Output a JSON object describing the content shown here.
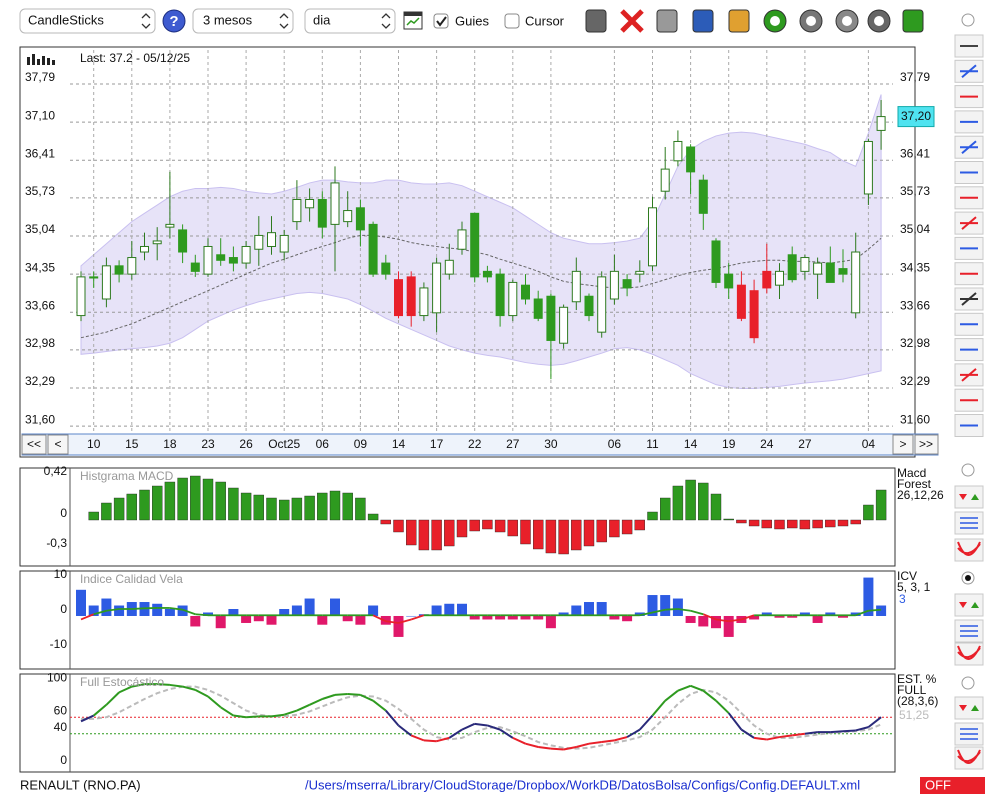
{
  "toolbar": {
    "chart_type": "CandleSticks",
    "period": "3 mesos",
    "interval": "dia",
    "guides": {
      "label": "Guies",
      "checked": true
    },
    "cursor": {
      "label": "Cursor",
      "checked": false
    }
  },
  "chart_data": [
    {
      "type": "candlestick",
      "annotation": "Last: 37.2 - 05/12/25",
      "categories": [
        null,
        "10",
        null,
        null,
        "15",
        null,
        null,
        "18",
        null,
        null,
        "23",
        null,
        null,
        "26",
        null,
        null,
        "Oct25",
        null,
        null,
        "06",
        null,
        null,
        "09",
        null,
        null,
        "14",
        null,
        null,
        "17",
        null,
        null,
        "22",
        null,
        null,
        "27",
        null,
        null,
        "30",
        null,
        null,
        null,
        null,
        "06",
        null,
        null,
        "11",
        null,
        null,
        "14",
        null,
        null,
        "19",
        null,
        null,
        "24",
        null,
        null,
        "27",
        null,
        null,
        null,
        null,
        "04",
        null
      ],
      "open": [
        33.6,
        34.3,
        33.9,
        34.5,
        34.35,
        34.75,
        34.9,
        35.2,
        35.15,
        34.55,
        34.35,
        34.7,
        34.65,
        34.55,
        34.8,
        34.85,
        34.75,
        35.3,
        35.55,
        35.7,
        35.25,
        35.3,
        35.55,
        35.25,
        34.55,
        34.25,
        34.3,
        33.6,
        33.65,
        34.35,
        34.8,
        35.45,
        34.4,
        34.35,
        33.6,
        34.15,
        33.9,
        33.95,
        33.1,
        33.85,
        33.95,
        33.3,
        33.9,
        34.25,
        34.35,
        34.5,
        35.85,
        36.4,
        36.65,
        36.05,
        34.95,
        34.35,
        34.15,
        33.2,
        34.4,
        34.15,
        34.7,
        34.4,
        34.35,
        34.55,
        34.45,
        33.65,
        35.8,
        36.95
      ],
      "high": [
        34.4,
        34.4,
        34.65,
        34.6,
        34.95,
        35.1,
        35.2,
        36.2,
        35.25,
        34.7,
        35.0,
        35.0,
        34.85,
        34.95,
        35.4,
        35.4,
        35.15,
        36.05,
        35.9,
        35.85,
        36.3,
        35.85,
        35.7,
        35.3,
        34.7,
        34.4,
        34.4,
        34.2,
        34.65,
        34.9,
        35.3,
        35.45,
        34.5,
        34.45,
        34.25,
        34.35,
        34.05,
        34.0,
        33.8,
        34.65,
        34.0,
        34.4,
        34.7,
        34.35,
        34.6,
        35.75,
        36.65,
        36.95,
        36.7,
        36.15,
        35.0,
        34.55,
        34.4,
        34.25,
        34.9,
        34.55,
        34.85,
        34.7,
        34.65,
        34.85,
        34.8,
        35.1,
        36.8,
        37.5
      ],
      "low": [
        33.5,
        34.1,
        33.75,
        34.2,
        34.25,
        34.6,
        34.6,
        35.0,
        34.55,
        34.3,
        34.3,
        34.5,
        34.4,
        34.45,
        34.5,
        34.7,
        34.6,
        35.15,
        35.3,
        35.0,
        34.4,
        35.2,
        34.85,
        34.3,
        34.25,
        33.55,
        33.4,
        33.5,
        33.3,
        34.25,
        34.7,
        34.2,
        34.2,
        33.4,
        33.5,
        33.8,
        33.5,
        32.45,
        33.0,
        33.7,
        33.5,
        33.2,
        33.8,
        33.95,
        34.2,
        34.4,
        35.7,
        36.3,
        35.8,
        35.15,
        34.1,
        33.9,
        33.5,
        33.1,
        34.0,
        33.9,
        34.2,
        34.25,
        33.9,
        34.2,
        34.2,
        33.55,
        35.6,
        36.6
      ],
      "close": [
        34.3,
        34.28,
        34.5,
        34.35,
        34.65,
        34.85,
        34.95,
        35.25,
        34.75,
        34.4,
        34.85,
        34.6,
        34.55,
        34.85,
        35.05,
        35.1,
        35.05,
        35.7,
        35.7,
        35.2,
        36.0,
        35.5,
        35.15,
        34.35,
        34.35,
        33.6,
        33.6,
        34.1,
        34.55,
        34.6,
        35.15,
        34.3,
        34.3,
        33.6,
        34.2,
        33.9,
        33.55,
        33.15,
        33.75,
        34.4,
        33.6,
        34.3,
        34.4,
        34.1,
        34.4,
        35.55,
        36.25,
        36.75,
        36.2,
        35.45,
        34.2,
        34.1,
        33.55,
        34.05,
        34.1,
        34.4,
        34.25,
        34.65,
        34.55,
        34.2,
        34.35,
        34.75,
        36.75,
        37.2
      ],
      "colors": [
        "#ffffff",
        "#2e9a1f",
        "#ffffff",
        "#2e9a1f",
        "#ffffff",
        "#ffffff",
        "#ffffff",
        "#ffffff",
        "#2e9a1f",
        "#2e9a1f",
        "#ffffff",
        "#2e9a1f",
        "#2e9a1f",
        "#ffffff",
        "#ffffff",
        "#ffffff",
        "#ffffff",
        "#ffffff",
        "#ffffff",
        "#2e9a1f",
        "#ffffff",
        "#ffffff",
        "#2e9a1f",
        "#2e9a1f",
        "#2e9a1f",
        "#e8202a",
        "#e8202a",
        "#ffffff",
        "#ffffff",
        "#ffffff",
        "#ffffff",
        "#2e9a1f",
        "#2e9a1f",
        "#2e9a1f",
        "#ffffff",
        "#2e9a1f",
        "#2e9a1f",
        "#2e9a1f",
        "#ffffff",
        "#ffffff",
        "#2e9a1f",
        "#ffffff",
        "#ffffff",
        "#2e9a1f",
        "#ffffff",
        "#ffffff",
        "#ffffff",
        "#ffffff",
        "#2e9a1f",
        "#2e9a1f",
        "#2e9a1f",
        "#2e9a1f",
        "#e8202a",
        "#e8202a",
        "#e8202a",
        "#ffffff",
        "#2e9a1f",
        "#ffffff",
        "#ffffff",
        "#2e9a1f",
        "#2e9a1f",
        "#ffffff",
        "#ffffff",
        "#ffffff"
      ],
      "ma": [
        33.2,
        33.25,
        33.3,
        33.38,
        33.45,
        33.55,
        33.65,
        33.75,
        33.85,
        33.95,
        34.05,
        34.15,
        34.25,
        34.35,
        34.45,
        34.55,
        34.62,
        34.7,
        34.78,
        34.85,
        34.92,
        35.0,
        35.05,
        35.05,
        35.02,
        34.98,
        34.92,
        34.88,
        34.85,
        34.82,
        34.8,
        34.75,
        34.7,
        34.62,
        34.55,
        34.48,
        34.4,
        34.3,
        34.22,
        34.18,
        34.15,
        34.12,
        34.1,
        34.1,
        34.12,
        34.18,
        34.25,
        34.32,
        34.38,
        34.42,
        34.45,
        34.5,
        34.55,
        34.58,
        34.6,
        34.6,
        34.58,
        34.58,
        34.57,
        34.55,
        34.58,
        34.62,
        34.8,
        35.0
      ],
      "band_upper": [
        34.5,
        34.7,
        34.9,
        35.1,
        35.3,
        35.45,
        35.6,
        35.75,
        35.85,
        35.9,
        35.9,
        35.92,
        35.9,
        35.85,
        35.82,
        35.8,
        35.85,
        35.92,
        36.0,
        36.05,
        36.05,
        36.02,
        36.0,
        36.0,
        36.05,
        36.05,
        36.0,
        35.98,
        35.98,
        36.0,
        35.95,
        35.85,
        35.75,
        35.65,
        35.55,
        35.4,
        35.25,
        35.1,
        35.0,
        34.95,
        34.9,
        34.9,
        34.92,
        34.95,
        35.0,
        35.3,
        35.8,
        36.3,
        36.6,
        36.75,
        36.85,
        36.9,
        36.92,
        36.9,
        36.85,
        36.8,
        36.75,
        36.7,
        36.62,
        36.55,
        36.4,
        36.3,
        36.9,
        37.6
      ],
      "band_lower": [
        32.9,
        32.92,
        32.95,
        32.98,
        33.0,
        33.02,
        33.05,
        33.1,
        33.2,
        33.35,
        33.5,
        33.6,
        33.7,
        33.78,
        33.85,
        33.9,
        33.95,
        34.0,
        34.02,
        34.0,
        33.95,
        33.9,
        33.8,
        33.68,
        33.55,
        33.45,
        33.35,
        33.25,
        33.15,
        33.05,
        32.98,
        32.92,
        32.88,
        32.85,
        32.8,
        32.75,
        32.72,
        32.7,
        32.72,
        32.78,
        32.85,
        32.92,
        33.0,
        33.02,
        32.98,
        32.9,
        32.8,
        32.7,
        32.55,
        32.45,
        32.35,
        32.3,
        32.28,
        32.28,
        32.3,
        32.32,
        32.35,
        32.38,
        32.4,
        32.42,
        32.45,
        32.5,
        32.55,
        32.6
      ],
      "band_color": "#c9c0f0",
      "last_price": {
        "value": 37.2,
        "label": "37,20"
      },
      "ylim": [
        31.53,
        38.26
      ],
      "yticks": [
        {
          "value": 31.6,
          "label": "31,60"
        },
        {
          "value": 32.29,
          "label": "32,29"
        },
        {
          "value": 32.98,
          "label": "32,98"
        },
        {
          "value": 33.66,
          "label": "33,66"
        },
        {
          "value": 34.35,
          "label": "34,35"
        },
        {
          "value": 35.04,
          "label": "35,04"
        },
        {
          "value": 35.73,
          "label": "35,73"
        },
        {
          "value": 36.41,
          "label": "36,41"
        },
        {
          "value": 37.1,
          "label": "37,10"
        },
        {
          "value": 37.79,
          "label": "37,79"
        }
      ],
      "grid": true
    },
    {
      "type": "bar",
      "title": "Histgrama MACD",
      "legend": [
        "Macd",
        "Forest",
        "26,12,26"
      ],
      "values": [
        null,
        0.08,
        0.17,
        0.22,
        0.26,
        0.3,
        0.34,
        0.38,
        0.42,
        0.44,
        0.41,
        0.38,
        0.32,
        0.27,
        0.25,
        0.22,
        0.2,
        0.22,
        0.24,
        0.27,
        0.29,
        0.27,
        0.22,
        0.06,
        -0.04,
        -0.12,
        -0.25,
        -0.3,
        -0.3,
        -0.26,
        -0.17,
        -0.11,
        -0.09,
        -0.12,
        -0.16,
        -0.24,
        -0.29,
        -0.33,
        -0.34,
        -0.3,
        -0.26,
        -0.22,
        -0.17,
        -0.14,
        -0.1,
        0.08,
        0.22,
        0.34,
        0.4,
        0.37,
        0.26,
        0.01,
        -0.03,
        -0.06,
        -0.08,
        -0.09,
        -0.08,
        -0.09,
        -0.08,
        -0.07,
        -0.06,
        -0.04,
        0.15,
        0.3
      ],
      "positive_color": "#2e9a1f",
      "negative_color": "#e8202a",
      "ylim": [
        -0.45,
        0.51
      ],
      "yticks": [
        {
          "value": 0.42,
          "label": "0,42"
        },
        0,
        {
          "value": -0.3,
          "label": "-0,3"
        }
      ]
    },
    {
      "type": "bar_line",
      "title": "Indice Calidad Vela",
      "legend": [
        "ICV",
        "5, 3, 1"
      ],
      "signal_label": "3",
      "values": [
        7.5,
        3,
        5,
        3,
        4,
        4,
        3.5,
        2,
        3,
        -3,
        1,
        -3.5,
        2,
        -2,
        -1.5,
        -2.5,
        2,
        3,
        5,
        -2.5,
        5,
        -1.5,
        -2.5,
        3,
        -2.5,
        -6,
        0,
        0.5,
        3,
        3.5,
        3.5,
        -1,
        -1,
        -1,
        -1,
        -1,
        -1,
        -3.5,
        1,
        3,
        4,
        4,
        -1,
        -1.5,
        1,
        6,
        6,
        5,
        -2,
        -3,
        -3.5,
        -6,
        -2,
        -1,
        1,
        -0.5,
        -0.5,
        1,
        -2,
        1,
        -0.5,
        1,
        11,
        3
      ],
      "signal": [
        -1,
        0.5,
        1.5,
        2,
        2,
        2.2,
        2.3,
        2.3,
        1.8,
        0.5,
        0.2,
        0.2,
        0.2,
        0.2,
        0.2,
        0.2,
        0.2,
        0.2,
        0.2,
        0.2,
        0.2,
        0.2,
        0.2,
        0.2,
        -1.5,
        -2,
        -1,
        0.2,
        0.2,
        0.2,
        0.2,
        0.2,
        0.2,
        0.2,
        0.2,
        0.2,
        0.2,
        0.2,
        0.2,
        0.2,
        0.2,
        0.2,
        0.2,
        0.2,
        0.2,
        1,
        1.8,
        2,
        1.5,
        0.5,
        -1,
        -1.5,
        -1,
        0.2,
        0.2,
        0.2,
        0.2,
        0.2,
        0.2,
        0.2,
        0.2,
        0.2,
        1.5,
        1.8
      ],
      "positive_color": "#2d5be3",
      "negative_color": "#e0186a",
      "signal_up_color": "#2e9a1f",
      "signal_down_color": "#e8202a",
      "ylim": [
        -14.9,
        12.6
      ],
      "yticks": [
        10,
        0,
        -10
      ]
    },
    {
      "type": "line",
      "title": "Full Estocástico",
      "legend": [
        "EST. %",
        "FULL",
        "(28,3,6)"
      ],
      "last_value": {
        "value": 51.25,
        "label": "51,25"
      },
      "k": [
        55,
        62,
        75,
        90,
        97,
        100,
        100,
        99,
        97,
        93,
        85,
        72,
        62,
        60,
        61,
        61,
        63,
        68,
        75,
        82,
        87,
        88,
        87,
        80,
        68,
        50,
        38,
        32,
        31,
        35,
        45,
        52,
        50,
        45,
        35,
        28,
        24,
        22,
        21,
        24,
        28,
        30,
        32,
        36,
        45,
        62,
        80,
        92,
        98,
        92,
        80,
        65,
        45,
        35,
        33,
        36,
        38,
        40,
        42,
        42,
        43,
        44,
        48,
        60
      ],
      "d": [
        58,
        58,
        60,
        66,
        74,
        82,
        89,
        94,
        97,
        97,
        93,
        86,
        77,
        68,
        63,
        61,
        61,
        63,
        67,
        73,
        79,
        84,
        86,
        85,
        80,
        70,
        58,
        45,
        36,
        33,
        35,
        42,
        47,
        48,
        43,
        37,
        30,
        26,
        23,
        22,
        23,
        26,
        29,
        32,
        36,
        45,
        60,
        76,
        88,
        93,
        90,
        80,
        65,
        50,
        40,
        35,
        35,
        37,
        39,
        41,
        42,
        43,
        45,
        51.25
      ],
      "high_color": "#2e9a1f",
      "mid_color": "#2a2a7a",
      "low_color": "#e8202a",
      "d_color": "#bbbbbb",
      "ylim": [
        -5,
        111
      ],
      "yticks": [
        100,
        60,
        40,
        0
      ]
    }
  ],
  "navigation": {
    "first": "<<",
    "prev": "<",
    "next": ">",
    "last": ">>"
  },
  "status": {
    "symbol": "RENAULT (RNO.PA)",
    "config_path": "/Users/mserra/Library/CloudStorage/Dropbox/WorkDB/DatosBolsa/Configs/Config.DEFAULT.xml",
    "realtime": "OFF"
  }
}
